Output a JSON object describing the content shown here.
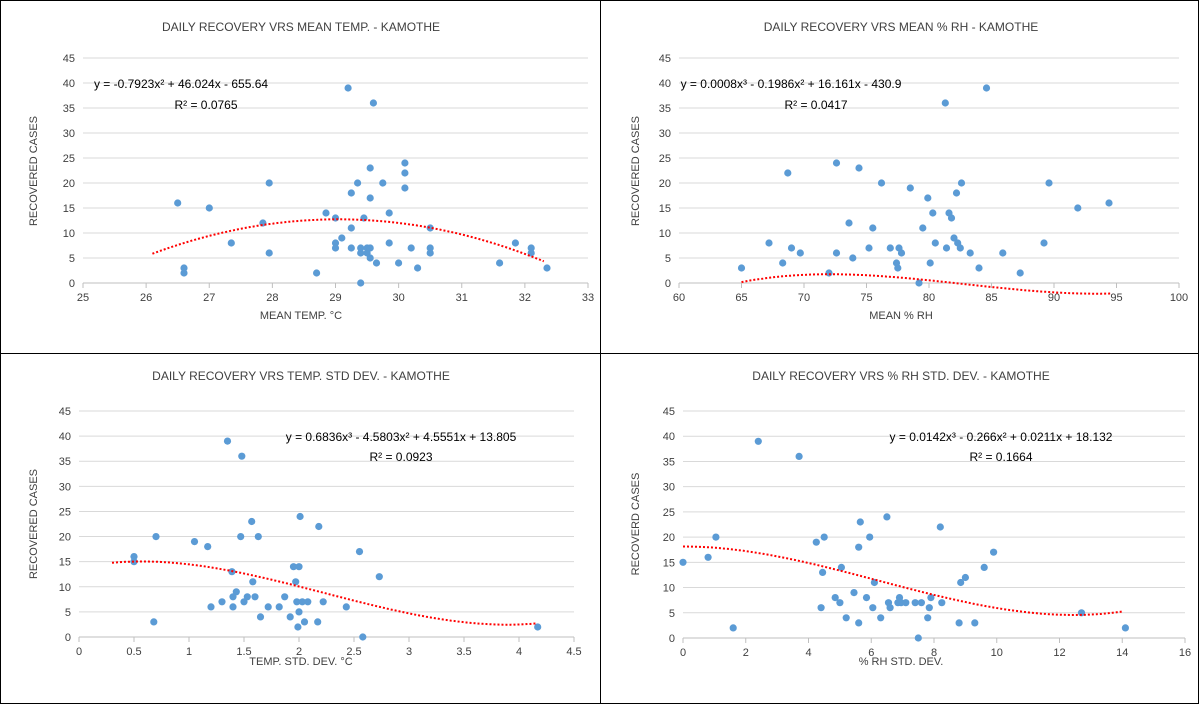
{
  "chart_data": [
    {
      "type": "scatter",
      "title": "DAILY RECOVERY VRS MEAN TEMP. - KAMOTHE",
      "xlabel": "MEAN TEMP. °C",
      "ylabel": "RECOVERED  CASES",
      "xlim": [
        25,
        33
      ],
      "ylim": [
        0,
        45
      ],
      "xticks": [
        "25",
        "26",
        "27",
        "28",
        "29",
        "30",
        "31",
        "32",
        "33"
      ],
      "yticks": [
        "0",
        "5",
        "10",
        "15",
        "20",
        "25",
        "30",
        "35",
        "40",
        "45"
      ],
      "grid": true,
      "point_color": "#5B9BD5",
      "trend_color": "#FF0000",
      "trendline": {
        "equation": "y = -0.7923x² + 46.024x - 655.64",
        "r2": "R² = 0.0765",
        "coefficients": [
          -655.64,
          46.024,
          -0.7923
        ],
        "x_range": [
          26.1,
          32.3
        ]
      },
      "points": [
        [
          26.5,
          16
        ],
        [
          26.6,
          3
        ],
        [
          26.6,
          2
        ],
        [
          27.0,
          15
        ],
        [
          27.35,
          8
        ],
        [
          27.85,
          12
        ],
        [
          27.95,
          6
        ],
        [
          27.95,
          20
        ],
        [
          28.7,
          2
        ],
        [
          28.85,
          14
        ],
        [
          29.0,
          13
        ],
        [
          29.0,
          8
        ],
        [
          29.0,
          7
        ],
        [
          29.1,
          9
        ],
        [
          29.2,
          39
        ],
        [
          29.25,
          18
        ],
        [
          29.25,
          11
        ],
        [
          29.25,
          7
        ],
        [
          29.35,
          20
        ],
        [
          29.4,
          6
        ],
        [
          29.4,
          7
        ],
        [
          29.4,
          0
        ],
        [
          29.45,
          13
        ],
        [
          29.5,
          6
        ],
        [
          29.5,
          7
        ],
        [
          29.55,
          23
        ],
        [
          29.55,
          17
        ],
        [
          29.55,
          5
        ],
        [
          29.55,
          7
        ],
        [
          29.6,
          36
        ],
        [
          29.65,
          4
        ],
        [
          29.75,
          20
        ],
        [
          29.85,
          14
        ],
        [
          29.85,
          8
        ],
        [
          30.0,
          4
        ],
        [
          30.1,
          24
        ],
        [
          30.1,
          22
        ],
        [
          30.1,
          19
        ],
        [
          30.2,
          7
        ],
        [
          30.3,
          3
        ],
        [
          30.5,
          11
        ],
        [
          30.5,
          7
        ],
        [
          30.5,
          6
        ],
        [
          31.6,
          4
        ],
        [
          31.85,
          8
        ],
        [
          32.1,
          7
        ],
        [
          32.1,
          6
        ],
        [
          32.35,
          3
        ]
      ]
    },
    {
      "type": "scatter",
      "title": "DAILY RECOVERY VRS MEAN % RH - KAMOTHE",
      "xlabel": "MEAN % RH",
      "ylabel": "RECOVERED  CASES",
      "xlim": [
        60,
        100
      ],
      "ylim": [
        0,
        45
      ],
      "xticks": [
        "60",
        "65",
        "70",
        "75",
        "80",
        "85",
        "90",
        "95",
        "100"
      ],
      "yticks": [
        "0",
        "5",
        "10",
        "15",
        "20",
        "25",
        "30",
        "35",
        "40",
        "45"
      ],
      "grid": true,
      "point_color": "#5B9BD5",
      "trend_color": "#FF0000",
      "trendline": {
        "equation": "y = 0.0008x³ - 0.1986x² + 16.161x - 430.9",
        "r2": "R² = 0.0417",
        "coefficients": [
          -430.9,
          16.161,
          -0.1986,
          0.0008
        ],
        "x_range": [
          65,
          94.5
        ]
      },
      "points": [
        [
          65.0,
          3
        ],
        [
          67.2,
          8
        ],
        [
          68.3,
          4
        ],
        [
          68.7,
          22
        ],
        [
          69.0,
          7
        ],
        [
          69.7,
          6
        ],
        [
          72.0,
          2
        ],
        [
          72.6,
          24
        ],
        [
          72.6,
          6
        ],
        [
          73.6,
          12
        ],
        [
          73.9,
          5
        ],
        [
          74.4,
          23
        ],
        [
          75.2,
          7
        ],
        [
          75.5,
          11
        ],
        [
          76.2,
          20
        ],
        [
          76.9,
          7
        ],
        [
          77.4,
          4
        ],
        [
          77.5,
          3
        ],
        [
          77.6,
          7
        ],
        [
          77.8,
          6
        ],
        [
          78.5,
          19
        ],
        [
          79.2,
          0
        ],
        [
          79.5,
          11
        ],
        [
          79.9,
          17
        ],
        [
          80.1,
          4
        ],
        [
          80.3,
          14
        ],
        [
          80.5,
          8
        ],
        [
          81.3,
          36
        ],
        [
          81.4,
          7
        ],
        [
          81.6,
          14
        ],
        [
          81.8,
          13
        ],
        [
          82.0,
          9
        ],
        [
          82.2,
          18
        ],
        [
          82.3,
          8
        ],
        [
          82.5,
          7
        ],
        [
          82.6,
          20
        ],
        [
          83.3,
          6
        ],
        [
          84.0,
          3
        ],
        [
          84.6,
          39
        ],
        [
          85.9,
          6
        ],
        [
          87.3,
          2
        ],
        [
          89.2,
          8
        ],
        [
          89.6,
          20
        ],
        [
          91.9,
          15
        ],
        [
          94.4,
          16
        ]
      ]
    },
    {
      "type": "scatter",
      "title": "DAILY RECOVERY VRS TEMP. STD DEV. - KAMOTHE",
      "xlabel": "TEMP. STD. DEV. °C",
      "ylabel": "RECOVERED  CASES",
      "xlim": [
        0,
        4.5
      ],
      "ylim": [
        0,
        45
      ],
      "xticks": [
        "0",
        "0.5",
        "1",
        "1.5",
        "2",
        "2.5",
        "3",
        "3.5",
        "4",
        "4.5"
      ],
      "yticks": [
        "0",
        "5",
        "10",
        "15",
        "20",
        "25",
        "30",
        "35",
        "40",
        "45"
      ],
      "grid": true,
      "point_color": "#5B9BD5",
      "trend_color": "#FF0000",
      "trendline": {
        "equation": "y = 0.6836x³ - 4.5803x² + 4.5551x + 13.805",
        "r2": "R² = 0.0923",
        "coefficients": [
          13.805,
          4.5551,
          -4.5803,
          0.6836
        ],
        "x_range": [
          0.3,
          4.15
        ]
      },
      "points": [
        [
          0.5,
          16
        ],
        [
          0.5,
          15
        ],
        [
          0.68,
          3
        ],
        [
          0.7,
          20
        ],
        [
          1.05,
          19
        ],
        [
          1.17,
          18
        ],
        [
          1.2,
          6
        ],
        [
          1.3,
          7
        ],
        [
          1.35,
          39
        ],
        [
          1.39,
          13
        ],
        [
          1.4,
          6
        ],
        [
          1.4,
          8
        ],
        [
          1.43,
          9
        ],
        [
          1.47,
          20
        ],
        [
          1.48,
          36
        ],
        [
          1.5,
          7
        ],
        [
          1.53,
          8
        ],
        [
          1.57,
          23
        ],
        [
          1.58,
          11
        ],
        [
          1.6,
          8
        ],
        [
          1.63,
          20
        ],
        [
          1.65,
          4
        ],
        [
          1.72,
          6
        ],
        [
          1.82,
          6
        ],
        [
          1.87,
          8
        ],
        [
          1.92,
          4
        ],
        [
          1.95,
          14
        ],
        [
          1.97,
          11
        ],
        [
          1.98,
          7
        ],
        [
          1.99,
          2
        ],
        [
          2.0,
          14
        ],
        [
          2.0,
          5
        ],
        [
          2.01,
          24
        ],
        [
          2.03,
          7
        ],
        [
          2.05,
          3
        ],
        [
          2.08,
          7
        ],
        [
          2.17,
          3
        ],
        [
          2.18,
          22
        ],
        [
          2.22,
          7
        ],
        [
          2.43,
          6
        ],
        [
          2.55,
          17
        ],
        [
          2.58,
          0
        ],
        [
          2.73,
          12
        ],
        [
          4.17,
          2
        ]
      ]
    },
    {
      "type": "scatter",
      "title": "DAILY RECOVERY VRS % RH STD. DEV. - KAMOTHE",
      "xlabel": "% RH STD. DEV.",
      "ylabel": "RECOVERD CASES",
      "xlim": [
        0,
        16
      ],
      "ylim": [
        0,
        45
      ],
      "xticks": [
        "0",
        "2",
        "4",
        "6",
        "8",
        "10",
        "12",
        "14",
        "16"
      ],
      "yticks": [
        "0",
        "5",
        "10",
        "15",
        "20",
        "25",
        "30",
        "35",
        "40",
        "45"
      ],
      "grid": true,
      "point_color": "#5B9BD5",
      "trend_color": "#FF0000",
      "trendline": {
        "equation": "y = 0.0142x³ - 0.266x² + 0.0211x + 18.132",
        "r2": "R² = 0.1664",
        "coefficients": [
          18.132,
          0.0211,
          -0.266,
          0.0142
        ],
        "x_range": [
          0,
          14
        ]
      },
      "points": [
        [
          0.0,
          15
        ],
        [
          0.8,
          16
        ],
        [
          1.05,
          20
        ],
        [
          1.6,
          2
        ],
        [
          2.4,
          39
        ],
        [
          3.7,
          36
        ],
        [
          4.25,
          19
        ],
        [
          4.4,
          6
        ],
        [
          4.45,
          13
        ],
        [
          4.5,
          20
        ],
        [
          4.85,
          8
        ],
        [
          5.0,
          7
        ],
        [
          5.05,
          14
        ],
        [
          5.2,
          4
        ],
        [
          5.45,
          9
        ],
        [
          5.6,
          18
        ],
        [
          5.6,
          3
        ],
        [
          5.65,
          23
        ],
        [
          5.85,
          8
        ],
        [
          5.95,
          20
        ],
        [
          6.05,
          6
        ],
        [
          6.1,
          11
        ],
        [
          6.3,
          4
        ],
        [
          6.5,
          24
        ],
        [
          6.55,
          7
        ],
        [
          6.6,
          6
        ],
        [
          6.85,
          7
        ],
        [
          6.9,
          8
        ],
        [
          6.95,
          7
        ],
        [
          7.1,
          7
        ],
        [
          7.4,
          7
        ],
        [
          7.5,
          0
        ],
        [
          7.6,
          7
        ],
        [
          7.8,
          4
        ],
        [
          7.85,
          6
        ],
        [
          7.9,
          8
        ],
        [
          8.2,
          22
        ],
        [
          8.25,
          7
        ],
        [
          8.8,
          3
        ],
        [
          8.85,
          11
        ],
        [
          9.0,
          12
        ],
        [
          9.3,
          3
        ],
        [
          9.6,
          14
        ],
        [
          9.9,
          17
        ],
        [
          12.7,
          5
        ],
        [
          14.1,
          2
        ]
      ]
    }
  ]
}
